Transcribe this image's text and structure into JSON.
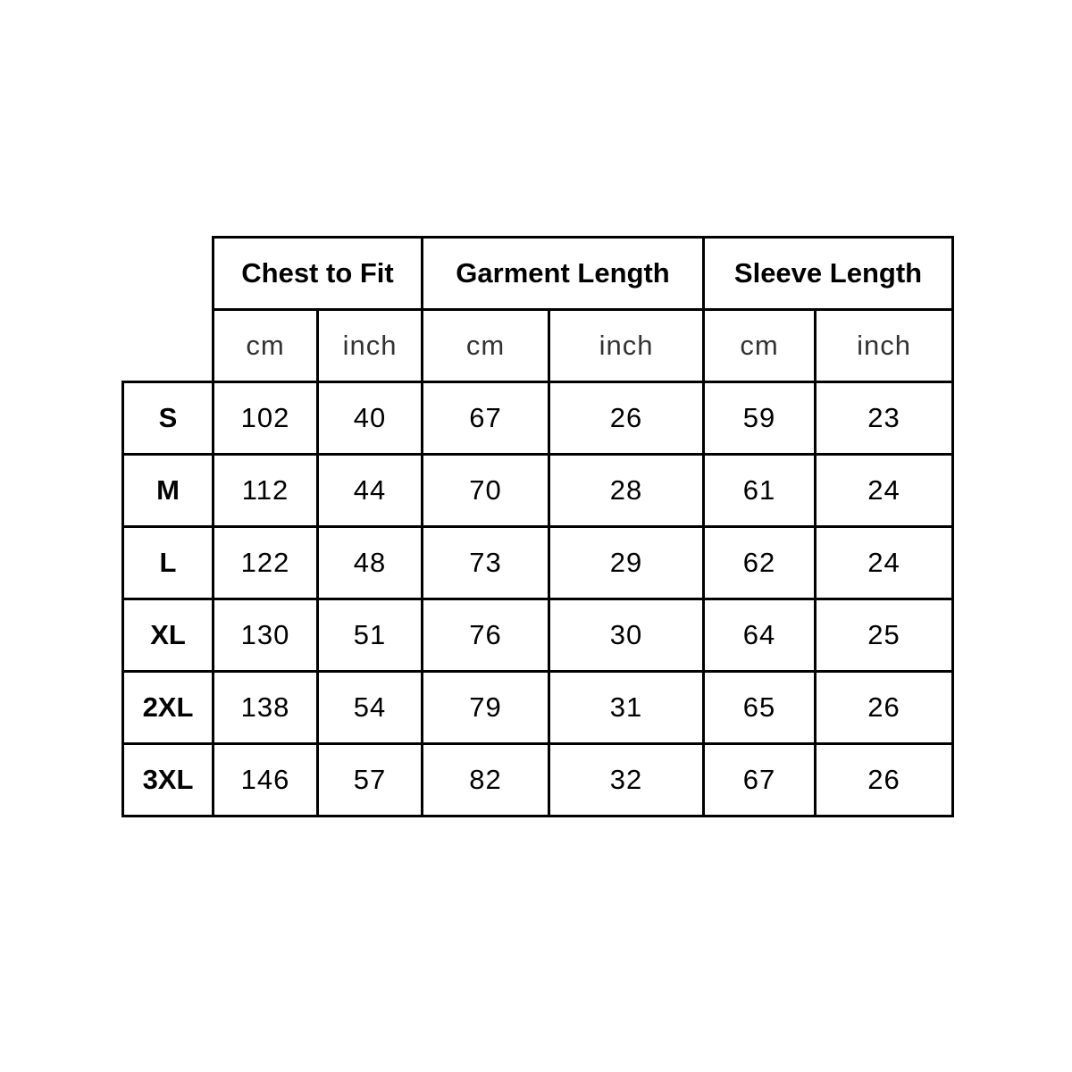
{
  "headers": {
    "groups": [
      "Chest to Fit",
      "Garment Length",
      "Sleeve Length"
    ],
    "units": [
      "cm",
      "inch",
      "cm",
      "inch",
      "cm",
      "inch"
    ]
  },
  "rows": [
    {
      "size": "S",
      "values": [
        "102",
        "40",
        "67",
        "26",
        "59",
        "23"
      ]
    },
    {
      "size": "M",
      "values": [
        "112",
        "44",
        "70",
        "28",
        "61",
        "24"
      ]
    },
    {
      "size": "L",
      "values": [
        "122",
        "48",
        "73",
        "29",
        "62",
        "24"
      ]
    },
    {
      "size": "XL",
      "values": [
        "130",
        "51",
        "76",
        "30",
        "64",
        "25"
      ]
    },
    {
      "size": "2XL",
      "values": [
        "138",
        "54",
        "79",
        "31",
        "65",
        "26"
      ]
    },
    {
      "size": "3XL",
      "values": [
        "146",
        "57",
        "82",
        "32",
        "67",
        "26"
      ]
    }
  ]
}
